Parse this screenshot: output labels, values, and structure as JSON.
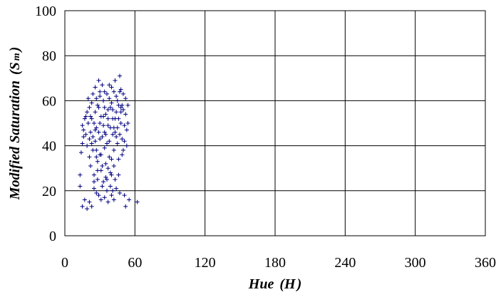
{
  "chart_data": {
    "type": "scatter",
    "title": "",
    "xlabel": {
      "main": "Hue",
      "symbol": "H"
    },
    "ylabel": {
      "main": "Modified Saturation",
      "symbol": "S",
      "subscript": "m"
    },
    "xlim": [
      0,
      360
    ],
    "ylim": [
      0,
      100
    ],
    "xticks": [
      "0",
      "60",
      "120",
      "180",
      "240",
      "300",
      "360"
    ],
    "yticks": [
      "0",
      "20",
      "40",
      "60",
      "80",
      "100"
    ],
    "grid": true,
    "legend": "none",
    "marker": "plus",
    "colors": {
      "marker": "#000080",
      "grid": "#000000",
      "background": "#ffffff"
    },
    "series": [
      {
        "values": [
          [
            13,
            27
          ],
          [
            13,
            22
          ],
          [
            15,
            13
          ],
          [
            17,
            16
          ],
          [
            19,
            12
          ],
          [
            21,
            15
          ],
          [
            23,
            13
          ],
          [
            25,
            21
          ],
          [
            27,
            19
          ],
          [
            29,
            18
          ],
          [
            31,
            16
          ],
          [
            34,
            17
          ],
          [
            37,
            15
          ],
          [
            40,
            18
          ],
          [
            42,
            16
          ],
          [
            47,
            19
          ],
          [
            51,
            18
          ],
          [
            52,
            13
          ],
          [
            55,
            16
          ],
          [
            62,
            15
          ],
          [
            14,
            37
          ],
          [
            15,
            41
          ],
          [
            16,
            44
          ],
          [
            15,
            49
          ],
          [
            17,
            52
          ],
          [
            16,
            47
          ],
          [
            18,
            53
          ],
          [
            19,
            55
          ],
          [
            18,
            45
          ],
          [
            20,
            50
          ],
          [
            19,
            40
          ],
          [
            21,
            57
          ],
          [
            22,
            46
          ],
          [
            21,
            35
          ],
          [
            22,
            31
          ],
          [
            23,
            59
          ],
          [
            24,
            63
          ],
          [
            23,
            52
          ],
          [
            24,
            44
          ],
          [
            25,
            27
          ],
          [
            25,
            24
          ],
          [
            26,
            66
          ],
          [
            27,
            61
          ],
          [
            26,
            55
          ],
          [
            27,
            48
          ],
          [
            27,
            38
          ],
          [
            28,
            33
          ],
          [
            28,
            25
          ],
          [
            29,
            69
          ],
          [
            30,
            64
          ],
          [
            29,
            57
          ],
          [
            30,
            50
          ],
          [
            30,
            43
          ],
          [
            31,
            36
          ],
          [
            31,
            29
          ],
          [
            32,
            22
          ],
          [
            32,
            67
          ],
          [
            33,
            60
          ],
          [
            33,
            53
          ],
          [
            34,
            46
          ],
          [
            34,
            39
          ],
          [
            35,
            32
          ],
          [
            35,
            26
          ],
          [
            36,
            20
          ],
          [
            36,
            63
          ],
          [
            37,
            56
          ],
          [
            37,
            49
          ],
          [
            38,
            42
          ],
          [
            38,
            35
          ],
          [
            39,
            28
          ],
          [
            39,
            22
          ],
          [
            40,
            66
          ],
          [
            40,
            59
          ],
          [
            41,
            52
          ],
          [
            41,
            45
          ],
          [
            42,
            38
          ],
          [
            42,
            31
          ],
          [
            43,
            25
          ],
          [
            43,
            69
          ],
          [
            44,
            62
          ],
          [
            44,
            55
          ],
          [
            45,
            48
          ],
          [
            45,
            41
          ],
          [
            46,
            34
          ],
          [
            46,
            27
          ],
          [
            47,
            71
          ],
          [
            47,
            64
          ],
          [
            48,
            57
          ],
          [
            48,
            50
          ],
          [
            49,
            43
          ],
          [
            49,
            36
          ],
          [
            50,
            63
          ],
          [
            50,
            56
          ],
          [
            51,
            49
          ],
          [
            51,
            42
          ],
          [
            52,
            61
          ],
          [
            52,
            54
          ],
          [
            53,
            47
          ],
          [
            53,
            40
          ],
          [
            54,
            58
          ],
          [
            54,
            50
          ],
          [
            20,
            61
          ],
          [
            22,
            53
          ],
          [
            24,
            38
          ],
          [
            26,
            42
          ],
          [
            28,
            58
          ],
          [
            30,
            36
          ],
          [
            32,
            44
          ],
          [
            34,
            57
          ],
          [
            36,
            41
          ],
          [
            38,
            61
          ],
          [
            40,
            34
          ],
          [
            42,
            48
          ],
          [
            44,
            44
          ],
          [
            46,
            52
          ],
          [
            48,
            65
          ],
          [
            50,
            38
          ],
          [
            25,
            50
          ],
          [
            29,
            46
          ],
          [
            33,
            49
          ],
          [
            37,
            52
          ],
          [
            41,
            56
          ],
          [
            45,
            60
          ],
          [
            49,
            58
          ],
          [
            23,
            41
          ],
          [
            27,
            35
          ],
          [
            31,
            53
          ],
          [
            35,
            45
          ],
          [
            39,
            48
          ],
          [
            43,
            52
          ],
          [
            47,
            45
          ],
          [
            28,
            29
          ],
          [
            32,
            31
          ],
          [
            36,
            25
          ],
          [
            40,
            27
          ],
          [
            44,
            21
          ],
          [
            33,
            24
          ],
          [
            37,
            30
          ],
          [
            41,
            20
          ],
          [
            30,
            62
          ],
          [
            34,
            64
          ],
          [
            38,
            67
          ],
          [
            42,
            64
          ],
          [
            46,
            58
          ],
          [
            26,
            47
          ],
          [
            35,
            54
          ],
          [
            43,
            46
          ],
          [
            21,
            43
          ],
          [
            39,
            57
          ],
          [
            48,
            55
          ]
        ]
      }
    ]
  }
}
